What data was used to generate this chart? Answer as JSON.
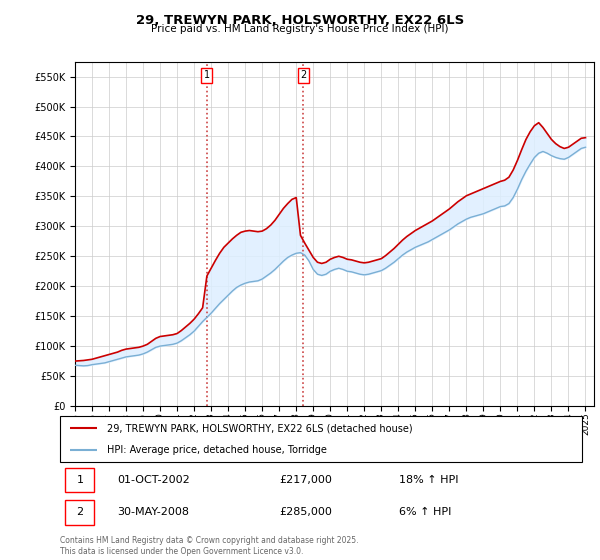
{
  "title": "29, TREWYN PARK, HOLSWORTHY, EX22 6LS",
  "subtitle": "Price paid vs. HM Land Registry's House Price Index (HPI)",
  "ylabel_ticks": [
    0,
    50000,
    100000,
    150000,
    200000,
    250000,
    300000,
    350000,
    400000,
    450000,
    500000,
    550000
  ],
  "ylim": [
    0,
    575000
  ],
  "xlim_start": 1995.0,
  "xlim_end": 2025.5,
  "sale1_year": 2002.75,
  "sale1_price": 217000,
  "sale1_label": "1",
  "sale1_date": "01-OCT-2002",
  "sale1_hpi": "18% ↑ HPI",
  "sale2_year": 2008.42,
  "sale2_price": 285000,
  "sale2_label": "2",
  "sale2_date": "30-MAY-2008",
  "sale2_hpi": "6% ↑ HPI",
  "line_color_property": "#cc0000",
  "line_color_hpi": "#7aafd4",
  "background_fill": "#ddeeff",
  "legend_label_property": "29, TREWYN PARK, HOLSWORTHY, EX22 6LS (detached house)",
  "legend_label_hpi": "HPI: Average price, detached house, Torridge",
  "footer": "Contains HM Land Registry data © Crown copyright and database right 2025.\nThis data is licensed under the Open Government Licence v3.0.",
  "hpi_data": {
    "years": [
      1995.0,
      1995.25,
      1995.5,
      1995.75,
      1996.0,
      1996.25,
      1996.5,
      1996.75,
      1997.0,
      1997.25,
      1997.5,
      1997.75,
      1998.0,
      1998.25,
      1998.5,
      1998.75,
      1999.0,
      1999.25,
      1999.5,
      1999.75,
      2000.0,
      2000.25,
      2000.5,
      2000.75,
      2001.0,
      2001.25,
      2001.5,
      2001.75,
      2002.0,
      2002.25,
      2002.5,
      2002.75,
      2003.0,
      2003.25,
      2003.5,
      2003.75,
      2004.0,
      2004.25,
      2004.5,
      2004.75,
      2005.0,
      2005.25,
      2005.5,
      2005.75,
      2006.0,
      2006.25,
      2006.5,
      2006.75,
      2007.0,
      2007.25,
      2007.5,
      2007.75,
      2008.0,
      2008.25,
      2008.5,
      2008.75,
      2009.0,
      2009.25,
      2009.5,
      2009.75,
      2010.0,
      2010.25,
      2010.5,
      2010.75,
      2011.0,
      2011.25,
      2011.5,
      2011.75,
      2012.0,
      2012.25,
      2012.5,
      2012.75,
      2013.0,
      2013.25,
      2013.5,
      2013.75,
      2014.0,
      2014.25,
      2014.5,
      2014.75,
      2015.0,
      2015.25,
      2015.5,
      2015.75,
      2016.0,
      2016.25,
      2016.5,
      2016.75,
      2017.0,
      2017.25,
      2017.5,
      2017.75,
      2018.0,
      2018.25,
      2018.5,
      2018.75,
      2019.0,
      2019.25,
      2019.5,
      2019.75,
      2020.0,
      2020.25,
      2020.5,
      2020.75,
      2021.0,
      2021.25,
      2021.5,
      2021.75,
      2022.0,
      2022.25,
      2022.5,
      2022.75,
      2023.0,
      2023.25,
      2023.5,
      2023.75,
      2024.0,
      2024.25,
      2024.5,
      2024.75,
      2025.0
    ],
    "values": [
      68000,
      67500,
      67000,
      67500,
      69000,
      70000,
      71000,
      72000,
      74000,
      76000,
      78000,
      80000,
      82000,
      83000,
      84000,
      85000,
      87000,
      90000,
      94000,
      98000,
      100000,
      101000,
      102000,
      103000,
      105000,
      109000,
      114000,
      119000,
      125000,
      133000,
      141000,
      148000,
      155000,
      163000,
      171000,
      178000,
      185000,
      192000,
      198000,
      202000,
      205000,
      207000,
      208000,
      209000,
      212000,
      217000,
      222000,
      228000,
      235000,
      242000,
      248000,
      252000,
      255000,
      256000,
      252000,
      242000,
      228000,
      220000,
      218000,
      220000,
      225000,
      228000,
      230000,
      228000,
      225000,
      224000,
      222000,
      220000,
      219000,
      220000,
      222000,
      224000,
      226000,
      230000,
      235000,
      240000,
      246000,
      252000,
      257000,
      261000,
      265000,
      268000,
      271000,
      274000,
      278000,
      282000,
      286000,
      290000,
      294000,
      299000,
      304000,
      308000,
      312000,
      315000,
      317000,
      319000,
      321000,
      324000,
      327000,
      330000,
      333000,
      334000,
      338000,
      348000,
      362000,
      378000,
      392000,
      404000,
      415000,
      422000,
      425000,
      422000,
      418000,
      415000,
      413000,
      412000,
      415000,
      420000,
      425000,
      430000,
      432000
    ]
  },
  "property_data": {
    "years": [
      1995.0,
      1995.25,
      1995.5,
      1995.75,
      1996.0,
      1996.25,
      1996.5,
      1996.75,
      1997.0,
      1997.25,
      1997.5,
      1997.75,
      1998.0,
      1998.25,
      1998.5,
      1998.75,
      1999.0,
      1999.25,
      1999.5,
      1999.75,
      2000.0,
      2000.25,
      2000.5,
      2000.75,
      2001.0,
      2001.25,
      2001.5,
      2001.75,
      2002.0,
      2002.25,
      2002.5,
      2002.75,
      2003.0,
      2003.25,
      2003.5,
      2003.75,
      2004.0,
      2004.25,
      2004.5,
      2004.75,
      2005.0,
      2005.25,
      2005.5,
      2005.75,
      2006.0,
      2006.25,
      2006.5,
      2006.75,
      2007.0,
      2007.25,
      2007.5,
      2007.75,
      2008.0,
      2008.25,
      2008.5,
      2008.75,
      2009.0,
      2009.25,
      2009.5,
      2009.75,
      2010.0,
      2010.25,
      2010.5,
      2010.75,
      2011.0,
      2011.25,
      2011.5,
      2011.75,
      2012.0,
      2012.25,
      2012.5,
      2012.75,
      2013.0,
      2013.25,
      2013.5,
      2013.75,
      2014.0,
      2014.25,
      2014.5,
      2014.75,
      2015.0,
      2015.25,
      2015.5,
      2015.75,
      2016.0,
      2016.25,
      2016.5,
      2016.75,
      2017.0,
      2017.25,
      2017.5,
      2017.75,
      2018.0,
      2018.25,
      2018.5,
      2018.75,
      2019.0,
      2019.25,
      2019.5,
      2019.75,
      2020.0,
      2020.25,
      2020.5,
      2020.75,
      2021.0,
      2021.25,
      2021.5,
      2021.75,
      2022.0,
      2022.25,
      2022.5,
      2022.75,
      2023.0,
      2023.25,
      2023.5,
      2023.75,
      2024.0,
      2024.25,
      2024.5,
      2024.75,
      2025.0
    ],
    "values": [
      75000,
      75500,
      76000,
      77000,
      78000,
      80000,
      82000,
      84000,
      86000,
      88000,
      90000,
      93000,
      95000,
      96000,
      97000,
      98000,
      100000,
      103000,
      108000,
      113000,
      116000,
      117000,
      118000,
      119000,
      121000,
      126000,
      132000,
      138000,
      145000,
      154000,
      164000,
      217000,
      230000,
      243000,
      255000,
      265000,
      272000,
      279000,
      285000,
      290000,
      292000,
      293000,
      292000,
      291000,
      292000,
      296000,
      302000,
      310000,
      320000,
      330000,
      338000,
      345000,
      348000,
      285000,
      272000,
      260000,
      248000,
      240000,
      238000,
      240000,
      245000,
      248000,
      250000,
      248000,
      245000,
      244000,
      242000,
      240000,
      239000,
      240000,
      242000,
      244000,
      246000,
      251000,
      257000,
      263000,
      270000,
      277000,
      283000,
      288000,
      293000,
      297000,
      301000,
      305000,
      309000,
      314000,
      319000,
      324000,
      329000,
      335000,
      341000,
      346000,
      351000,
      354000,
      357000,
      360000,
      363000,
      366000,
      369000,
      372000,
      375000,
      377000,
      382000,
      394000,
      410000,
      428000,
      445000,
      458000,
      468000,
      473000,
      465000,
      455000,
      445000,
      438000,
      433000,
      430000,
      432000,
      437000,
      442000,
      447000,
      448000
    ]
  }
}
